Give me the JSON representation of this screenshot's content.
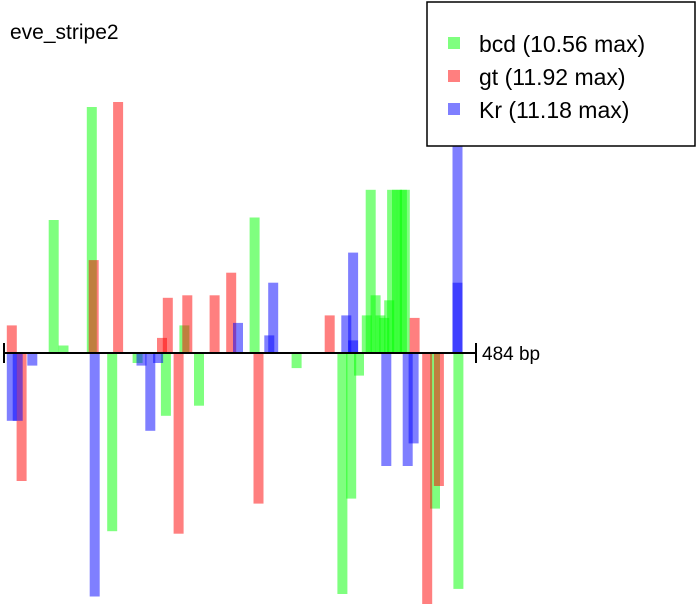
{
  "chart_data": {
    "type": "bar",
    "title": "eve_stripe2",
    "length_label": "484 bp",
    "length_bp": 484,
    "xlim": [
      0,
      484
    ],
    "yscale": "per-factor fraction of max score (+ above axis, - below)",
    "ylim": [
      -1,
      1
    ],
    "grid": false,
    "legend": "top-right",
    "series": [
      {
        "name": "bcd (10.56 max)",
        "factor": "bcd",
        "max": 10.56,
        "color": "#00ff00",
        "opacity": 0.5,
        "sites": [
          {
            "x": 51,
            "y": 0.53
          },
          {
            "x": 61,
            "y": 0.03
          },
          {
            "x": 90,
            "y": 0.98
          },
          {
            "x": 111,
            "y": -0.71
          },
          {
            "x": 137,
            "y": -0.04
          },
          {
            "x": 166,
            "y": -0.25
          },
          {
            "x": 185,
            "y": 0.11
          },
          {
            "x": 200,
            "y": -0.21
          },
          {
            "x": 257,
            "y": 0.54
          },
          {
            "x": 300,
            "y": -0.06
          },
          {
            "x": 347,
            "y": -0.96
          },
          {
            "x": 356,
            "y": -0.58
          },
          {
            "x": 364,
            "y": -0.09
          },
          {
            "x": 372,
            "y": 0.15
          },
          {
            "x": 376,
            "y": 0.65
          },
          {
            "x": 381,
            "y": 0.23
          },
          {
            "x": 386,
            "y": 0.15
          },
          {
            "x": 390,
            "y": 0.14
          },
          {
            "x": 395,
            "y": 0.21
          },
          {
            "x": 398,
            "y": 0.65
          },
          {
            "x": 403,
            "y": 0.65
          },
          {
            "x": 408,
            "y": 0.65
          },
          {
            "x": 411,
            "y": 0.65
          },
          {
            "x": 442,
            "y": -0.62
          },
          {
            "x": 466,
            "y": -0.94
          }
        ]
      },
      {
        "name": "gt (11.92 max)",
        "factor": "gt",
        "max": 11.92,
        "color": "#ff0000",
        "opacity": 0.5,
        "sites": [
          {
            "x": 8,
            "y": 0.11
          },
          {
            "x": 18,
            "y": -0.51
          },
          {
            "x": 92,
            "y": 0.37
          },
          {
            "x": 117,
            "y": 1.0
          },
          {
            "x": 162,
            "y": 0.06
          },
          {
            "x": 168,
            "y": 0.22
          },
          {
            "x": 179,
            "y": -0.72
          },
          {
            "x": 188,
            "y": 0.23
          },
          {
            "x": 216,
            "y": 0.23
          },
          {
            "x": 233,
            "y": 0.32
          },
          {
            "x": 261,
            "y": -0.6
          },
          {
            "x": 334,
            "y": 0.15
          },
          {
            "x": 421,
            "y": 0.14
          },
          {
            "x": 434,
            "y": -1.0
          },
          {
            "x": 446,
            "y": -0.53
          }
        ]
      },
      {
        "name": "Kr (11.18 max)",
        "factor": "Kr",
        "max": 11.18,
        "color": "#0000ff",
        "opacity": 0.5,
        "sites": [
          {
            "x": 8,
            "y": -0.27
          },
          {
            "x": 14,
            "y": -0.27
          },
          {
            "x": 29,
            "y": -0.05
          },
          {
            "x": 93,
            "y": -0.97
          },
          {
            "x": 141,
            "y": -0.05
          },
          {
            "x": 150,
            "y": -0.31
          },
          {
            "x": 158,
            "y": -0.04
          },
          {
            "x": 240,
            "y": 0.12
          },
          {
            "x": 272,
            "y": 0.07
          },
          {
            "x": 276,
            "y": 0.28
          },
          {
            "x": 351,
            "y": 0.15
          },
          {
            "x": 358,
            "y": 0.05
          },
          {
            "x": 358,
            "y": 0.4
          },
          {
            "x": 392,
            "y": -0.45
          },
          {
            "x": 414,
            "y": -0.45
          },
          {
            "x": 420,
            "y": -0.36
          },
          {
            "x": 465,
            "y": 0.28
          },
          {
            "x": 465,
            "y": 1.0
          }
        ]
      }
    ]
  }
}
